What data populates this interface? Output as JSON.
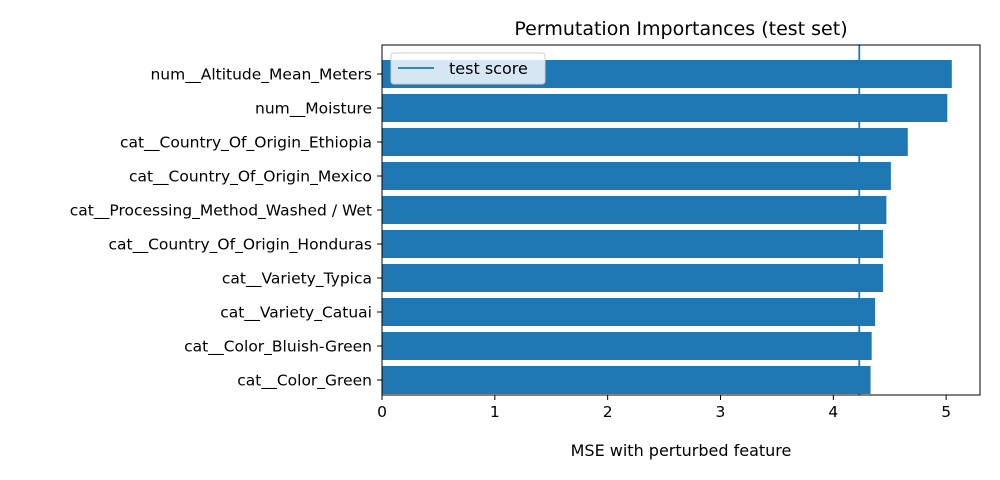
{
  "chart_data": {
    "type": "bar",
    "orientation": "horizontal",
    "title": "Permutation Importances (test set)",
    "xlabel": "MSE with perturbed feature",
    "ylabel": "",
    "xlim": [
      0,
      5.3
    ],
    "xticks": [
      0,
      1,
      2,
      3,
      4,
      5
    ],
    "categories": [
      "num__Altitude_Mean_Meters",
      "num__Moisture",
      "cat__Country_Of_Origin_Ethiopia",
      "cat__Country_Of_Origin_Mexico",
      "cat__Processing_Method_Washed / Wet",
      "cat__Country_Of_Origin_Honduras",
      "cat__Variety_Typica",
      "cat__Variety_Catuai",
      "cat__Color_Bluish-Green",
      "cat__Color_Green"
    ],
    "values": [
      5.05,
      5.01,
      4.66,
      4.51,
      4.47,
      4.44,
      4.44,
      4.37,
      4.34,
      4.33
    ],
    "reference_line": {
      "name": "test score",
      "value": 4.23
    },
    "legend": {
      "position": "top-left",
      "entries": [
        "test score"
      ]
    },
    "grid": false,
    "colors": {
      "bar": "#1f77b4",
      "line": "#1f77b4"
    }
  }
}
